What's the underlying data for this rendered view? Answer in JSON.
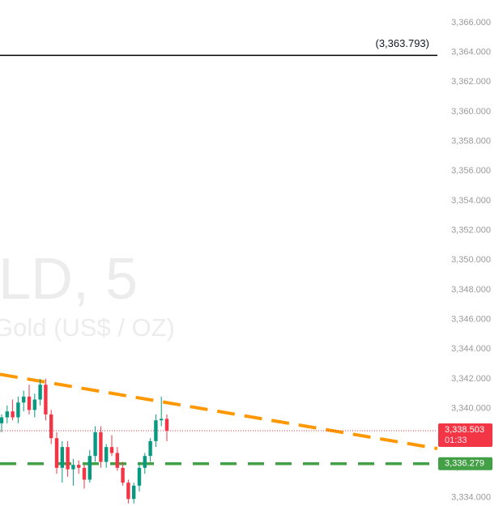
{
  "chart_data": {
    "type": "candlestick",
    "watermark": {
      "symbol": "LD, 5",
      "description": "Gold (US$ / OZ)"
    },
    "categories": [
      null,
      null,
      null,
      null,
      null,
      null,
      null,
      null,
      null,
      null,
      null,
      null,
      null,
      null,
      null,
      null,
      null,
      null,
      null,
      null,
      null,
      null,
      null,
      null,
      null,
      null,
      null,
      null,
      null,
      null,
      null
    ],
    "open": [
      3339.0,
      3339.4,
      3339.8,
      3339.4,
      3340.4,
      3340.8,
      3339.9,
      3340.6,
      3341.6,
      3339.6,
      3338.0,
      3336.0,
      3337.4,
      3335.9,
      3336.2,
      3336.0,
      3335.2,
      3336.8,
      3338.4,
      3336.4,
      3337.4,
      3337.0,
      3336.0,
      3335.0,
      3333.9,
      3334.8,
      3336.0,
      3336.8,
      3337.8,
      3339.2,
      3339.3
    ],
    "high": [
      3339.6,
      3340.2,
      3340.6,
      3340.8,
      3341.2,
      3341.6,
      3341.0,
      3342.0,
      3342.0,
      3339.9,
      3338.4,
      3337.8,
      3337.8,
      3336.6,
      3336.5,
      3336.2,
      3337.2,
      3338.8,
      3338.8,
      3337.6,
      3338.2,
      3337.4,
      3336.4,
      3335.2,
      3335.0,
      3336.4,
      3337.0,
      3338.0,
      3339.6,
      3340.8,
      3339.6
    ],
    "low": [
      3338.4,
      3339.0,
      3339.2,
      3339.0,
      3339.8,
      3339.6,
      3339.4,
      3340.2,
      3339.2,
      3337.6,
      3335.6,
      3335.0,
      3335.4,
      3334.8,
      3335.6,
      3334.6,
      3335.0,
      3336.4,
      3336.0,
      3336.0,
      3336.8,
      3335.8,
      3334.8,
      3333.6,
      3333.6,
      3334.4,
      3335.6,
      3336.4,
      3337.4,
      3338.8,
      3337.8
    ],
    "close": [
      3339.4,
      3339.8,
      3339.4,
      3340.4,
      3340.8,
      3339.9,
      3340.6,
      3341.6,
      3339.6,
      3338.0,
      3336.0,
      3337.4,
      3335.9,
      3336.2,
      3336.0,
      3335.2,
      3336.8,
      3338.4,
      3336.4,
      3337.4,
      3337.0,
      3336.0,
      3335.0,
      3333.9,
      3334.8,
      3336.0,
      3336.8,
      3337.8,
      3339.2,
      3339.3,
      3338.5
    ],
    "up_color": "#089981",
    "down_color": "#f23645",
    "ylim": [
      3333.7,
      3366.05
    ],
    "yticks": [
      {
        "value": 3334,
        "label": "3,334.000"
      },
      {
        "value": 3336,
        "label": "3,336.000"
      },
      {
        "value": 3338,
        "label": "3,338.000"
      },
      {
        "value": 3340,
        "label": "3,340.000"
      },
      {
        "value": 3342,
        "label": "3,342.000"
      },
      {
        "value": 3344,
        "label": "3,344.000"
      },
      {
        "value": 3346,
        "label": "3,346.000"
      },
      {
        "value": 3348,
        "label": "3,348.000"
      },
      {
        "value": 3350,
        "label": "3,350.000"
      },
      {
        "value": 3352,
        "label": "3,352.000"
      },
      {
        "value": 3354,
        "label": "3,354.000"
      },
      {
        "value": 3356,
        "label": "3,356.000"
      },
      {
        "value": 3358,
        "label": "3,358.000"
      },
      {
        "value": 3360,
        "label": "3,360.000"
      },
      {
        "value": 3362,
        "label": "3,362.000"
      },
      {
        "value": 3364,
        "label": "3,364.000"
      },
      {
        "value": 3366,
        "label": "3,366.000"
      }
    ],
    "level": {
      "value": 3363.793,
      "label": "(3,363.793)",
      "color": "#000000"
    },
    "last_price": {
      "value": 3338.503,
      "label": "3,338.503",
      "countdown": "01:33",
      "color": "#f23645"
    },
    "support": {
      "value": 3336.279,
      "label": "3,336.279",
      "color": "#43a047"
    },
    "trendline": {
      "values": [
        3342.3,
        3337.3
      ],
      "color": "#ff9800"
    }
  }
}
